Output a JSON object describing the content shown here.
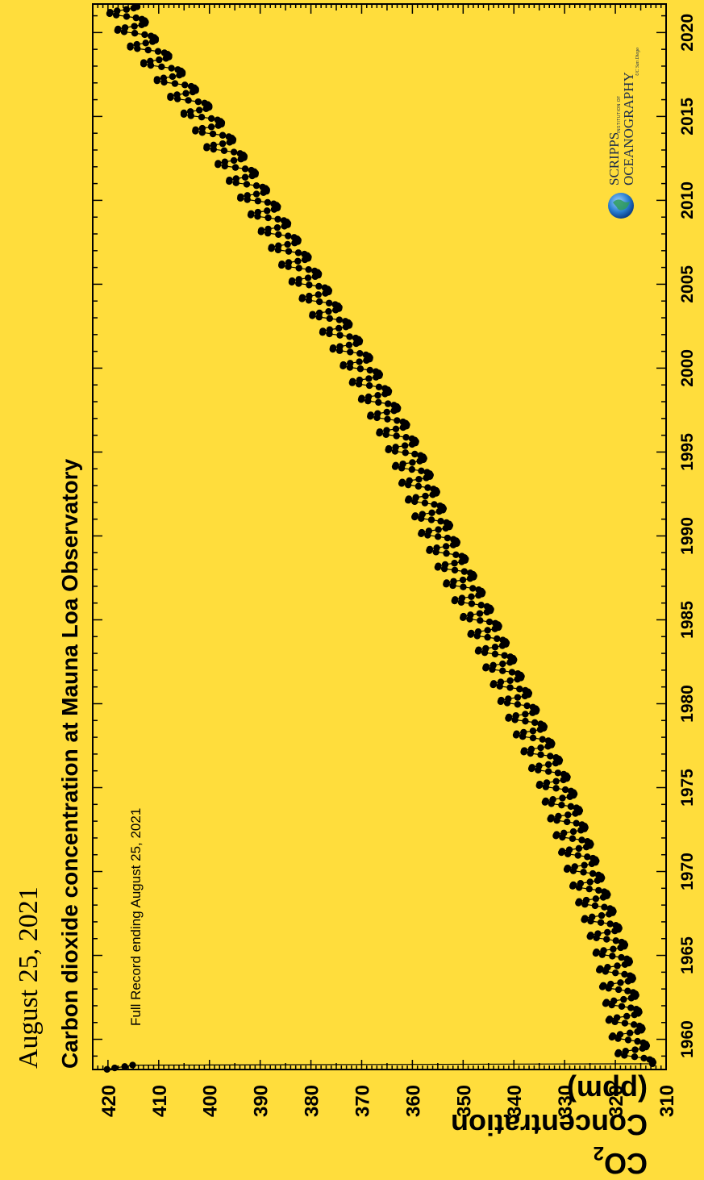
{
  "header": {
    "date": "August 25, 2021",
    "title": "Carbon dioxide concentration at Mauna Loa Observatory",
    "subtitle": "Full Record ending August 25, 2021"
  },
  "logo": {
    "line1": "SCRIPPS",
    "institution": "INSTITUTION OF",
    "line2": "OCEANOGRAPHY",
    "ucsd": "UC San Diego"
  },
  "colors": {
    "background": "#FFDD3C",
    "points": "#000000"
  },
  "chart_data": {
    "type": "scatter",
    "orientation": "rotated-90",
    "title": "Carbon dioxide concentration at Mauna Loa Observatory",
    "ylabel": "CO2 Concentration (ppm)",
    "ylabel_parts": {
      "main": "CO",
      "sub": "2",
      "rest": " Concentration (ppm)"
    },
    "xlabel": "",
    "xlim": [
      1958.2,
      2021.7
    ],
    "ylim": [
      310,
      423
    ],
    "x_ticks": [
      1960,
      1965,
      1970,
      1975,
      1980,
      1985,
      1990,
      1995,
      2000,
      2005,
      2010,
      2015,
      2020
    ],
    "y_ticks": [
      310,
      320,
      330,
      340,
      350,
      360,
      370,
      380,
      390,
      400,
      410,
      420
    ],
    "series": [
      {
        "trend_points": [
          {
            "year": 1958.5,
            "ppm": 315.0
          },
          {
            "year": 1960,
            "ppm": 316.9
          },
          {
            "year": 1965,
            "ppm": 320.0
          },
          {
            "year": 1970,
            "ppm": 325.7
          },
          {
            "year": 1975,
            "ppm": 331.1
          },
          {
            "year": 1980,
            "ppm": 338.7
          },
          {
            "year": 1985,
            "ppm": 346.1
          },
          {
            "year": 1990,
            "ppm": 354.4
          },
          {
            "year": 1995,
            "ppm": 360.8
          },
          {
            "year": 2000,
            "ppm": 369.7
          },
          {
            "year": 2005,
            "ppm": 379.8
          },
          {
            "year": 2010,
            "ppm": 389.9
          },
          {
            "year": 2015,
            "ppm": 401.0
          },
          {
            "year": 2020,
            "ppm": 414.2
          },
          {
            "year": 2021.6,
            "ppm": 416.7
          }
        ],
        "seasonal_amplitude_ppm": 3.2
      }
    ],
    "grid": false
  }
}
